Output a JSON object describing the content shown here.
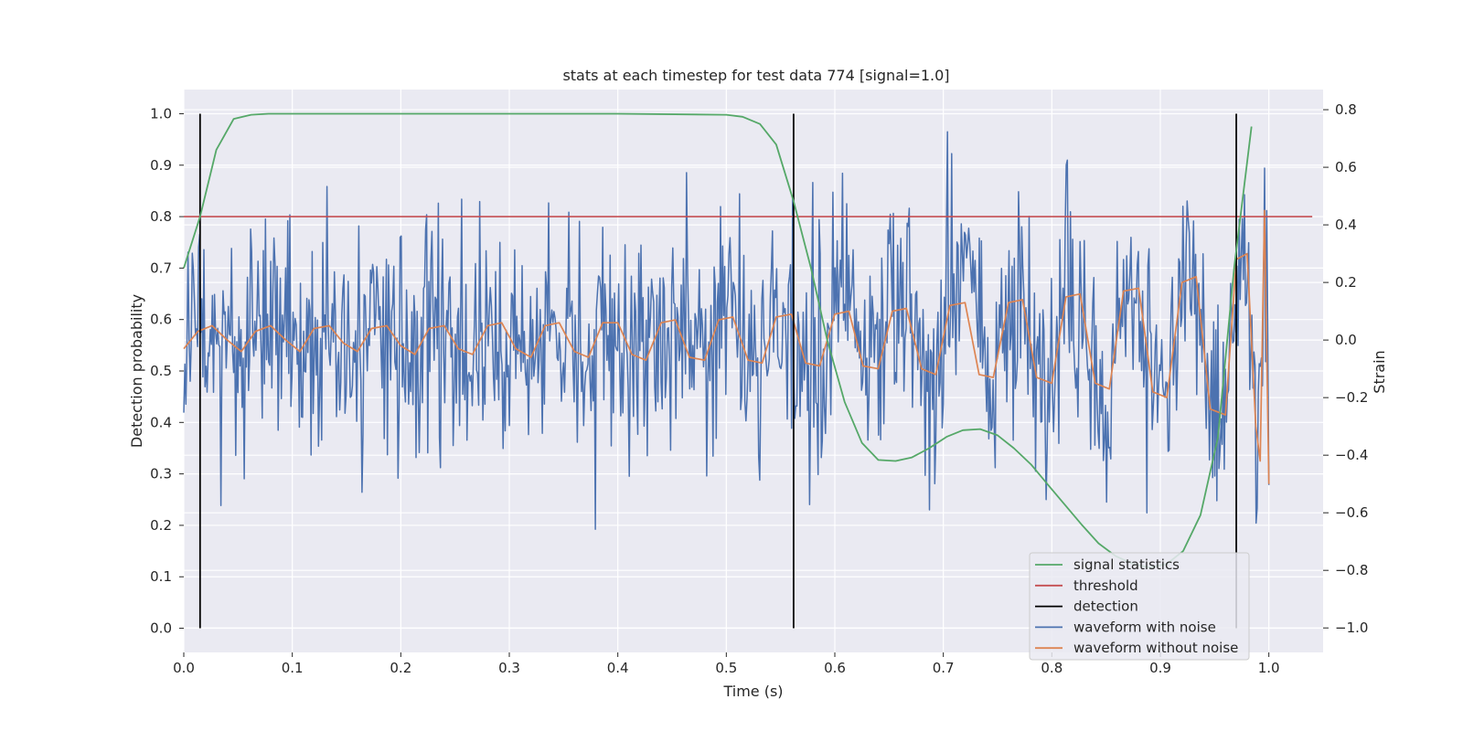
{
  "chart_data": {
    "type": "line",
    "title": "stats at each timestep for test data 774 [signal=1.0]",
    "xlabel": "Time (s)",
    "ylabel": "Detection probability",
    "y2label": "Strain",
    "xlim": [
      0.0,
      1.05
    ],
    "ylim": [
      -0.047,
      1.047
    ],
    "y2lim": [
      -1.085,
      0.87
    ],
    "x_ticks": [
      "0.0",
      "0.1",
      "0.2",
      "0.3",
      "0.4",
      "0.5",
      "0.6",
      "0.7",
      "0.8",
      "0.9",
      "1.0"
    ],
    "x_tick_values": [
      0.0,
      0.1,
      0.2,
      0.3,
      0.4,
      0.5,
      0.6,
      0.7,
      0.8,
      0.9,
      1.0
    ],
    "y_ticks": [
      "0.0",
      "0.1",
      "0.2",
      "0.3",
      "0.4",
      "0.5",
      "0.6",
      "0.7",
      "0.8",
      "0.9",
      "1.0"
    ],
    "y_tick_values": [
      0.0,
      0.1,
      0.2,
      0.3,
      0.4,
      0.5,
      0.6,
      0.7,
      0.8,
      0.9,
      1.0
    ],
    "y2_ticks": [
      "−1.0",
      "−0.8",
      "−0.6",
      "−0.4",
      "−0.2",
      "0.0",
      "0.2",
      "0.4",
      "0.6",
      "0.8"
    ],
    "y2_tick_values": [
      -1.0,
      -0.8,
      -0.6,
      -0.4,
      -0.2,
      0.0,
      0.2,
      0.4,
      0.6,
      0.8
    ],
    "grid": true,
    "legend_position": "lower-right",
    "colors": {
      "signal_statistics": "#55a868",
      "threshold": "#c44e52",
      "detection": "#000000",
      "waveform_noise": "#4c72b0",
      "waveform_clean": "#dd8452",
      "axes_bg": "#eaeaf2",
      "grid": "#ffffff"
    },
    "legend": [
      {
        "label": "signal statistics",
        "color": "#55a868"
      },
      {
        "label": "threshold",
        "color": "#c44e52"
      },
      {
        "label": "detection",
        "color": "#000000"
      },
      {
        "label": "waveform with noise",
        "color": "#4c72b0"
      },
      {
        "label": "waveform without noise",
        "color": "#dd8452"
      }
    ],
    "threshold": 0.8,
    "threshold_x_range": [
      0.0,
      1.04
    ],
    "detections": [
      0.015,
      0.562,
      0.97
    ],
    "detection_y_range": [
      0.0,
      1.0
    ],
    "signal_statistics": {
      "x": [
        0.0,
        0.015,
        0.03,
        0.046,
        0.062,
        0.078,
        0.1,
        0.2,
        0.3,
        0.4,
        0.5,
        0.515,
        0.531,
        0.546,
        0.562,
        0.578,
        0.593,
        0.609,
        0.625,
        0.64,
        0.656,
        0.671,
        0.687,
        0.703,
        0.718,
        0.734,
        0.75,
        0.765,
        0.781,
        0.796,
        0.812,
        0.828,
        0.843,
        0.859,
        0.875,
        0.89,
        0.906,
        0.921,
        0.937,
        0.953,
        0.968,
        0.984
      ],
      "y": [
        0.7,
        0.8,
        0.93,
        0.99,
        0.998,
        1.0,
        1.0,
        1.0,
        1.0,
        1.0,
        0.998,
        0.994,
        0.98,
        0.94,
        0.83,
        0.7,
        0.56,
        0.44,
        0.36,
        0.327,
        0.325,
        0.332,
        0.35,
        0.372,
        0.385,
        0.387,
        0.375,
        0.35,
        0.318,
        0.28,
        0.24,
        0.2,
        0.165,
        0.14,
        0.125,
        0.118,
        0.125,
        0.15,
        0.22,
        0.37,
        0.7,
        0.975
      ]
    },
    "waveform_without_noise": {
      "description_of_model": "chirp sampled on strain axis",
      "x_start": 0.0,
      "x_end": 1.0,
      "points": [
        [
          0.0,
          -0.03
        ],
        [
          0.013,
          0.03
        ],
        [
          0.026,
          0.05
        ],
        [
          0.04,
          0.0
        ],
        [
          0.053,
          -0.04
        ],
        [
          0.066,
          0.03
        ],
        [
          0.08,
          0.05
        ],
        [
          0.094,
          0.0
        ],
        [
          0.107,
          -0.04
        ],
        [
          0.12,
          0.04
        ],
        [
          0.134,
          0.05
        ],
        [
          0.147,
          -0.01
        ],
        [
          0.16,
          -0.04
        ],
        [
          0.173,
          0.04
        ],
        [
          0.187,
          0.05
        ],
        [
          0.2,
          -0.02
        ],
        [
          0.213,
          -0.05
        ],
        [
          0.226,
          0.04
        ],
        [
          0.24,
          0.05
        ],
        [
          0.253,
          -0.03
        ],
        [
          0.266,
          -0.05
        ],
        [
          0.28,
          0.05
        ],
        [
          0.293,
          0.06
        ],
        [
          0.306,
          -0.03
        ],
        [
          0.32,
          -0.06
        ],
        [
          0.333,
          0.05
        ],
        [
          0.346,
          0.06
        ],
        [
          0.36,
          -0.04
        ],
        [
          0.373,
          -0.06
        ],
        [
          0.386,
          0.06
        ],
        [
          0.4,
          0.06
        ],
        [
          0.413,
          -0.05
        ],
        [
          0.426,
          -0.07
        ],
        [
          0.44,
          0.06
        ],
        [
          0.453,
          0.07
        ],
        [
          0.466,
          -0.06
        ],
        [
          0.48,
          -0.07
        ],
        [
          0.493,
          0.07
        ],
        [
          0.506,
          0.08
        ],
        [
          0.52,
          -0.07
        ],
        [
          0.533,
          -0.08
        ],
        [
          0.546,
          0.08
        ],
        [
          0.56,
          0.09
        ],
        [
          0.573,
          -0.08
        ],
        [
          0.586,
          -0.09
        ],
        [
          0.6,
          0.09
        ],
        [
          0.613,
          0.1
        ],
        [
          0.626,
          -0.09
        ],
        [
          0.64,
          -0.1
        ],
        [
          0.653,
          0.1
        ],
        [
          0.666,
          0.11
        ],
        [
          0.68,
          -0.1
        ],
        [
          0.693,
          -0.12
        ],
        [
          0.706,
          0.12
        ],
        [
          0.72,
          0.13
        ],
        [
          0.733,
          -0.12
        ],
        [
          0.746,
          -0.13
        ],
        [
          0.76,
          0.13
        ],
        [
          0.773,
          0.14
        ],
        [
          0.786,
          -0.13
        ],
        [
          0.8,
          -0.15
        ],
        [
          0.813,
          0.15
        ],
        [
          0.826,
          0.16
        ],
        [
          0.84,
          -0.15
        ],
        [
          0.853,
          -0.17
        ],
        [
          0.866,
          0.17
        ],
        [
          0.88,
          0.18
        ],
        [
          0.893,
          -0.18
        ],
        [
          0.906,
          -0.2
        ],
        [
          0.92,
          0.2
        ],
        [
          0.933,
          0.22
        ],
        [
          0.946,
          -0.24
        ],
        [
          0.96,
          -0.26
        ],
        [
          0.97,
          0.28
        ],
        [
          0.98,
          0.3
        ],
        [
          0.988,
          -0.3
        ],
        [
          0.992,
          -0.42
        ],
        [
          0.996,
          0.45
        ],
        [
          1.0,
          -0.5
        ]
      ]
    },
    "waveform_with_noise": {
      "noise_amplitude": 0.2,
      "seed": 774,
      "samples": 1024,
      "x_start": 0.0,
      "x_end": 1.0,
      "range": [
        -1.0,
        0.8
      ]
    }
  }
}
